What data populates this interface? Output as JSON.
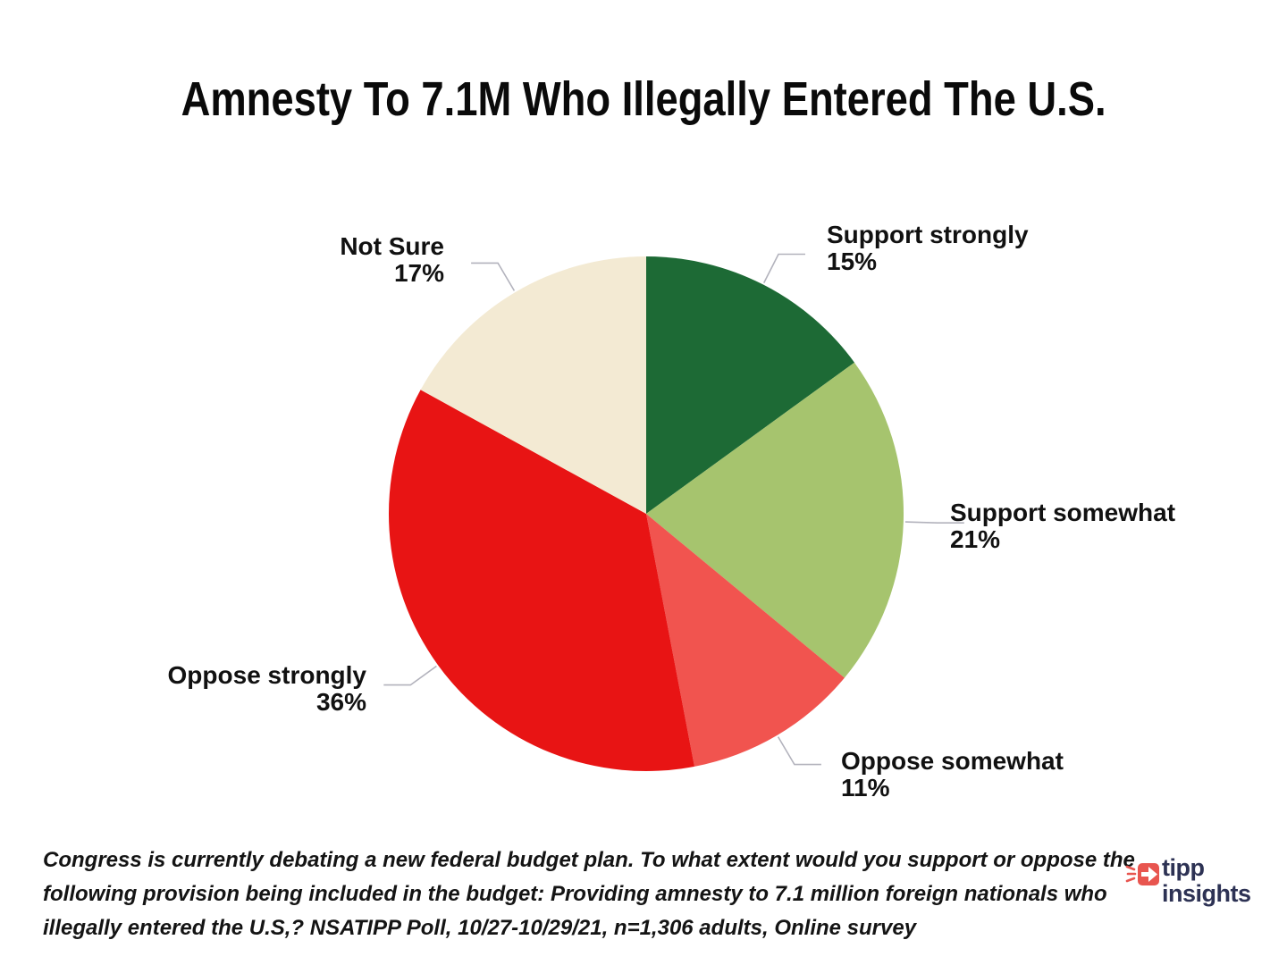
{
  "title": "Amnesty To 7.1M Who Illegally Entered The U.S.",
  "chart_data": {
    "type": "pie",
    "title": "Amnesty To 7.1M Who Illegally Entered The U.S.",
    "start_angle_deg": 0,
    "direction": "clockwise",
    "slices": [
      {
        "label": "Support strongly",
        "value": 15,
        "display": "15%",
        "color": "#1d6a35"
      },
      {
        "label": "Support somewhat",
        "value": 21,
        "display": "21%",
        "color": "#a6c46e"
      },
      {
        "label": "Oppose somewhat",
        "value": 11,
        "display": "11%",
        "color": "#f1544f"
      },
      {
        "label": "Oppose strongly",
        "value": 36,
        "display": "36%",
        "color": "#e81414"
      },
      {
        "label": "Not Sure",
        "value": 17,
        "display": "17%",
        "color": "#f3ead3"
      }
    ],
    "leader_line_color": "#b2b2bc",
    "background": "#ffffff"
  },
  "footer": {
    "note": "Congress is currently debating a new federal budget plan. To what extent would you support or oppose the following provision being included in the budget: Providing amnesty to 7.1 million foreign nationals who illegally entered the U.S,? NSATIPP Poll, 10/27-10/29/21, n=1,306 adults, Online survey"
  },
  "logo": {
    "line1": "tipp",
    "line2": "insights",
    "text_color": "#2d3254",
    "icon_color": "#e8554f"
  }
}
